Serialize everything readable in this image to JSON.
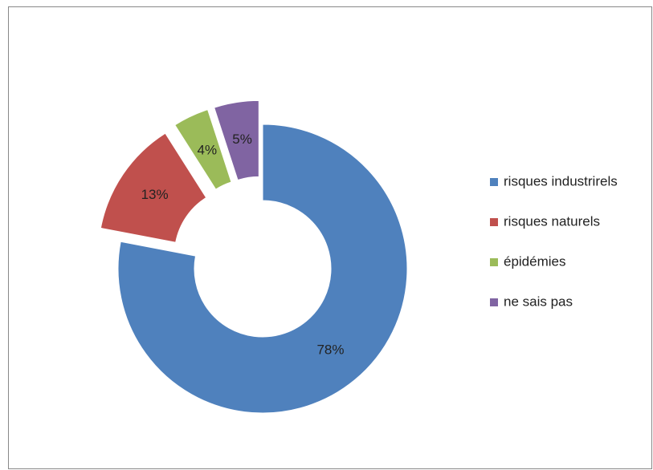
{
  "chart_data": {
    "type": "donut",
    "categories": [
      "risques industrirels",
      "risques naturels",
      "épidémies",
      "ne sais pas"
    ],
    "values": [
      78,
      13,
      4,
      5
    ],
    "value_labels": [
      "78%",
      "13%",
      "4%",
      "5%"
    ],
    "colors": [
      "#4f81bd",
      "#c0504d",
      "#9bbb59",
      "#8064a2"
    ],
    "exploded": [
      false,
      true,
      true,
      true
    ],
    "legend": "right"
  }
}
